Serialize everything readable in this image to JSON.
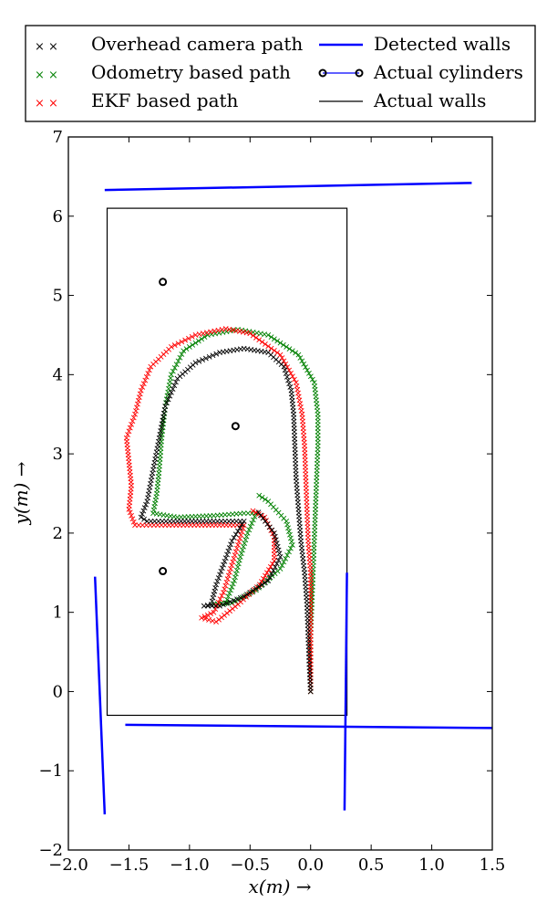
{
  "chart_data": {
    "type": "scatter",
    "xlabel": "x(m) →",
    "ylabel": "y(m) →",
    "xlim": [
      -2.0,
      1.5
    ],
    "ylim": [
      -2.0,
      7.0
    ],
    "xticks": [
      -2.0,
      -1.5,
      -1.0,
      -0.5,
      0.0,
      0.5,
      1.0,
      1.5
    ],
    "yticks": [
      -2,
      -1,
      0,
      1,
      2,
      3,
      4,
      5,
      6,
      7
    ],
    "xtick_labels": [
      "−2.0",
      "−1.5",
      "−1.0",
      "−0.5",
      "0.0",
      "0.5",
      "1.0",
      "1.5"
    ],
    "ytick_labels": [
      "−2",
      "−1",
      "0",
      "1",
      "2",
      "3",
      "4",
      "5",
      "6",
      "7"
    ],
    "legend": {
      "placement": "top, outside plot, 2 columns",
      "entries": [
        {
          "label": "Overhead camera path",
          "color": "#000000",
          "marker": "x"
        },
        {
          "label": "Odometry based path",
          "color": "#008000",
          "marker": "x"
        },
        {
          "label": "EKF based path",
          "color": "#ff0000",
          "marker": "x"
        },
        {
          "label": "Detected walls",
          "color": "#0000ff",
          "marker": "line"
        },
        {
          "label": "Actual cylinders",
          "color": "#000000",
          "marker": "circle-line",
          "line_color": "#0000ff"
        },
        {
          "label": "Actual walls",
          "color": "#000000",
          "marker": "line"
        }
      ]
    },
    "series": [
      {
        "name": "Overhead camera path",
        "color": "#000000",
        "kind": "x-markers",
        "points": [
          [
            0.0,
            0.0
          ],
          [
            -0.01,
            0.3
          ],
          [
            -0.02,
            0.7
          ],
          [
            -0.03,
            1.1
          ],
          [
            -0.05,
            1.5
          ],
          [
            -0.08,
            1.9
          ],
          [
            -0.1,
            2.3
          ],
          [
            -0.12,
            2.7
          ],
          [
            -0.13,
            3.1
          ],
          [
            -0.14,
            3.5
          ],
          [
            -0.16,
            3.8
          ],
          [
            -0.22,
            4.1
          ],
          [
            -0.35,
            4.28
          ],
          [
            -0.55,
            4.33
          ],
          [
            -0.75,
            4.28
          ],
          [
            -0.95,
            4.15
          ],
          [
            -1.1,
            3.95
          ],
          [
            -1.2,
            3.6
          ],
          [
            -1.25,
            3.2
          ],
          [
            -1.3,
            2.8
          ],
          [
            -1.35,
            2.4
          ],
          [
            -1.4,
            2.2
          ],
          [
            -1.35,
            2.15
          ],
          [
            -1.1,
            2.15
          ],
          [
            -0.8,
            2.15
          ],
          [
            -0.55,
            2.15
          ],
          [
            -0.65,
            1.9
          ],
          [
            -0.72,
            1.6
          ],
          [
            -0.78,
            1.35
          ],
          [
            -0.82,
            1.1
          ],
          [
            -0.88,
            1.08
          ],
          [
            -0.75,
            1.08
          ],
          [
            -0.55,
            1.2
          ],
          [
            -0.35,
            1.4
          ],
          [
            -0.25,
            1.7
          ],
          [
            -0.3,
            2.0
          ],
          [
            -0.45,
            2.3
          ]
        ]
      },
      {
        "name": "Odometry based path",
        "color": "#008000",
        "kind": "x-markers",
        "points": [
          [
            0.0,
            0.0
          ],
          [
            0.0,
            0.3
          ],
          [
            0.0,
            0.7
          ],
          [
            0.01,
            1.1
          ],
          [
            0.02,
            1.5
          ],
          [
            0.03,
            1.9
          ],
          [
            0.04,
            2.3
          ],
          [
            0.05,
            2.7
          ],
          [
            0.06,
            3.1
          ],
          [
            0.06,
            3.5
          ],
          [
            0.03,
            3.9
          ],
          [
            -0.1,
            4.25
          ],
          [
            -0.35,
            4.5
          ],
          [
            -0.6,
            4.57
          ],
          [
            -0.85,
            4.5
          ],
          [
            -1.05,
            4.3
          ],
          [
            -1.15,
            4.0
          ],
          [
            -1.2,
            3.6
          ],
          [
            -1.23,
            3.2
          ],
          [
            -1.25,
            2.8
          ],
          [
            -1.27,
            2.5
          ],
          [
            -1.3,
            2.25
          ],
          [
            -1.1,
            2.2
          ],
          [
            -0.8,
            2.22
          ],
          [
            -0.55,
            2.25
          ],
          [
            -0.45,
            2.25
          ],
          [
            -0.52,
            2.0
          ],
          [
            -0.58,
            1.7
          ],
          [
            -0.63,
            1.4
          ],
          [
            -0.7,
            1.12
          ],
          [
            -0.8,
            1.1
          ],
          [
            -0.65,
            1.12
          ],
          [
            -0.45,
            1.28
          ],
          [
            -0.25,
            1.55
          ],
          [
            -0.15,
            1.85
          ],
          [
            -0.2,
            2.15
          ],
          [
            -0.35,
            2.4
          ],
          [
            -0.45,
            2.5
          ]
        ]
      },
      {
        "name": "EKF based path",
        "color": "#ff0000",
        "kind": "x-markers",
        "points": [
          [
            0.0,
            0.0
          ],
          [
            0.0,
            0.3
          ],
          [
            0.0,
            0.7
          ],
          [
            0.0,
            1.1
          ],
          [
            0.0,
            1.5
          ],
          [
            -0.02,
            1.9
          ],
          [
            -0.03,
            2.3
          ],
          [
            -0.04,
            2.7
          ],
          [
            -0.05,
            3.1
          ],
          [
            -0.07,
            3.5
          ],
          [
            -0.12,
            3.9
          ],
          [
            -0.25,
            4.25
          ],
          [
            -0.5,
            4.52
          ],
          [
            -0.7,
            4.58
          ],
          [
            -0.95,
            4.5
          ],
          [
            -1.15,
            4.35
          ],
          [
            -1.32,
            4.1
          ],
          [
            -1.4,
            3.8
          ],
          [
            -1.45,
            3.5
          ],
          [
            -1.52,
            3.2
          ],
          [
            -1.5,
            2.9
          ],
          [
            -1.48,
            2.6
          ],
          [
            -1.5,
            2.3
          ],
          [
            -1.45,
            2.1
          ],
          [
            -1.2,
            2.1
          ],
          [
            -0.9,
            2.1
          ],
          [
            -0.55,
            2.1
          ],
          [
            -0.6,
            1.85
          ],
          [
            -0.66,
            1.55
          ],
          [
            -0.72,
            1.25
          ],
          [
            -0.8,
            1.0
          ],
          [
            -0.9,
            0.93
          ],
          [
            -0.78,
            0.88
          ],
          [
            -0.6,
            1.1
          ],
          [
            -0.42,
            1.35
          ],
          [
            -0.3,
            1.65
          ],
          [
            -0.3,
            1.95
          ],
          [
            -0.38,
            2.2
          ],
          [
            -0.5,
            2.3
          ]
        ]
      },
      {
        "name": "Detected walls",
        "color": "#0000ff",
        "kind": "segments",
        "segments": [
          [
            [
              -1.7,
              6.33
            ],
            [
              1.33,
              6.42
            ]
          ],
          [
            [
              -1.78,
              1.45
            ],
            [
              -1.7,
              -1.55
            ]
          ],
          [
            [
              -1.53,
              -0.42
            ],
            [
              1.5,
              -0.46
            ]
          ],
          [
            [
              0.3,
              1.5
            ],
            [
              0.28,
              -1.5
            ]
          ]
        ]
      },
      {
        "name": "Actual cylinders",
        "color": "#000000",
        "kind": "circles",
        "points": [
          [
            -1.22,
            5.17
          ],
          [
            -0.62,
            3.35
          ],
          [
            -1.22,
            1.52
          ]
        ]
      },
      {
        "name": "Actual walls",
        "color": "#000000",
        "kind": "rectangle",
        "corners": [
          [
            -1.68,
            -0.3
          ],
          [
            0.3,
            6.1
          ]
        ]
      }
    ]
  }
}
